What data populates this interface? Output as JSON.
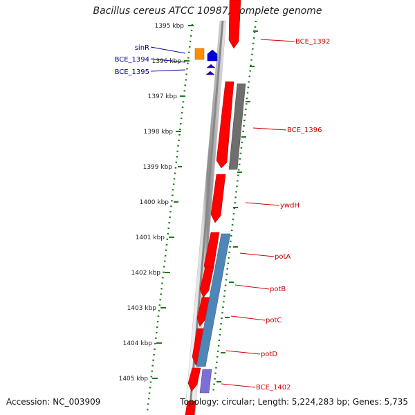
{
  "title": "Bacillus cereus ATCC 10987, complete genome",
  "footer": {
    "accession": "Accession: NC_003909",
    "stats": "Topology: circular; Length: 5,224,283 bp; Genes: 5,735"
  },
  "ticks": [
    "1395 kbp",
    "1396 kbp",
    "1397 kbp",
    "1398 kbp",
    "1399 kbp",
    "1400 kbp",
    "1401 kbp",
    "1402 kbp",
    "1403 kbp",
    "1404 kbp",
    "1405 kbp"
  ],
  "genes_right": [
    "BCE_1392",
    "BCE_1396",
    "ywdH",
    "potA",
    "potB",
    "potC",
    "potD",
    "BCE_1402"
  ],
  "genes_left": [
    "sinR",
    "BCE_1394",
    "BCE_1395"
  ],
  "colors": {
    "cds": "#ff0000",
    "rna_gray": "#6e6e6e",
    "blast_blue": "#4f86b8",
    "blast_purple": "#7a6fd6",
    "feature_blue": "#0000dd",
    "feature_orange": "#ff8c00",
    "axis_green": "#1a7a1a",
    "backbone": "#9a9a9a"
  }
}
